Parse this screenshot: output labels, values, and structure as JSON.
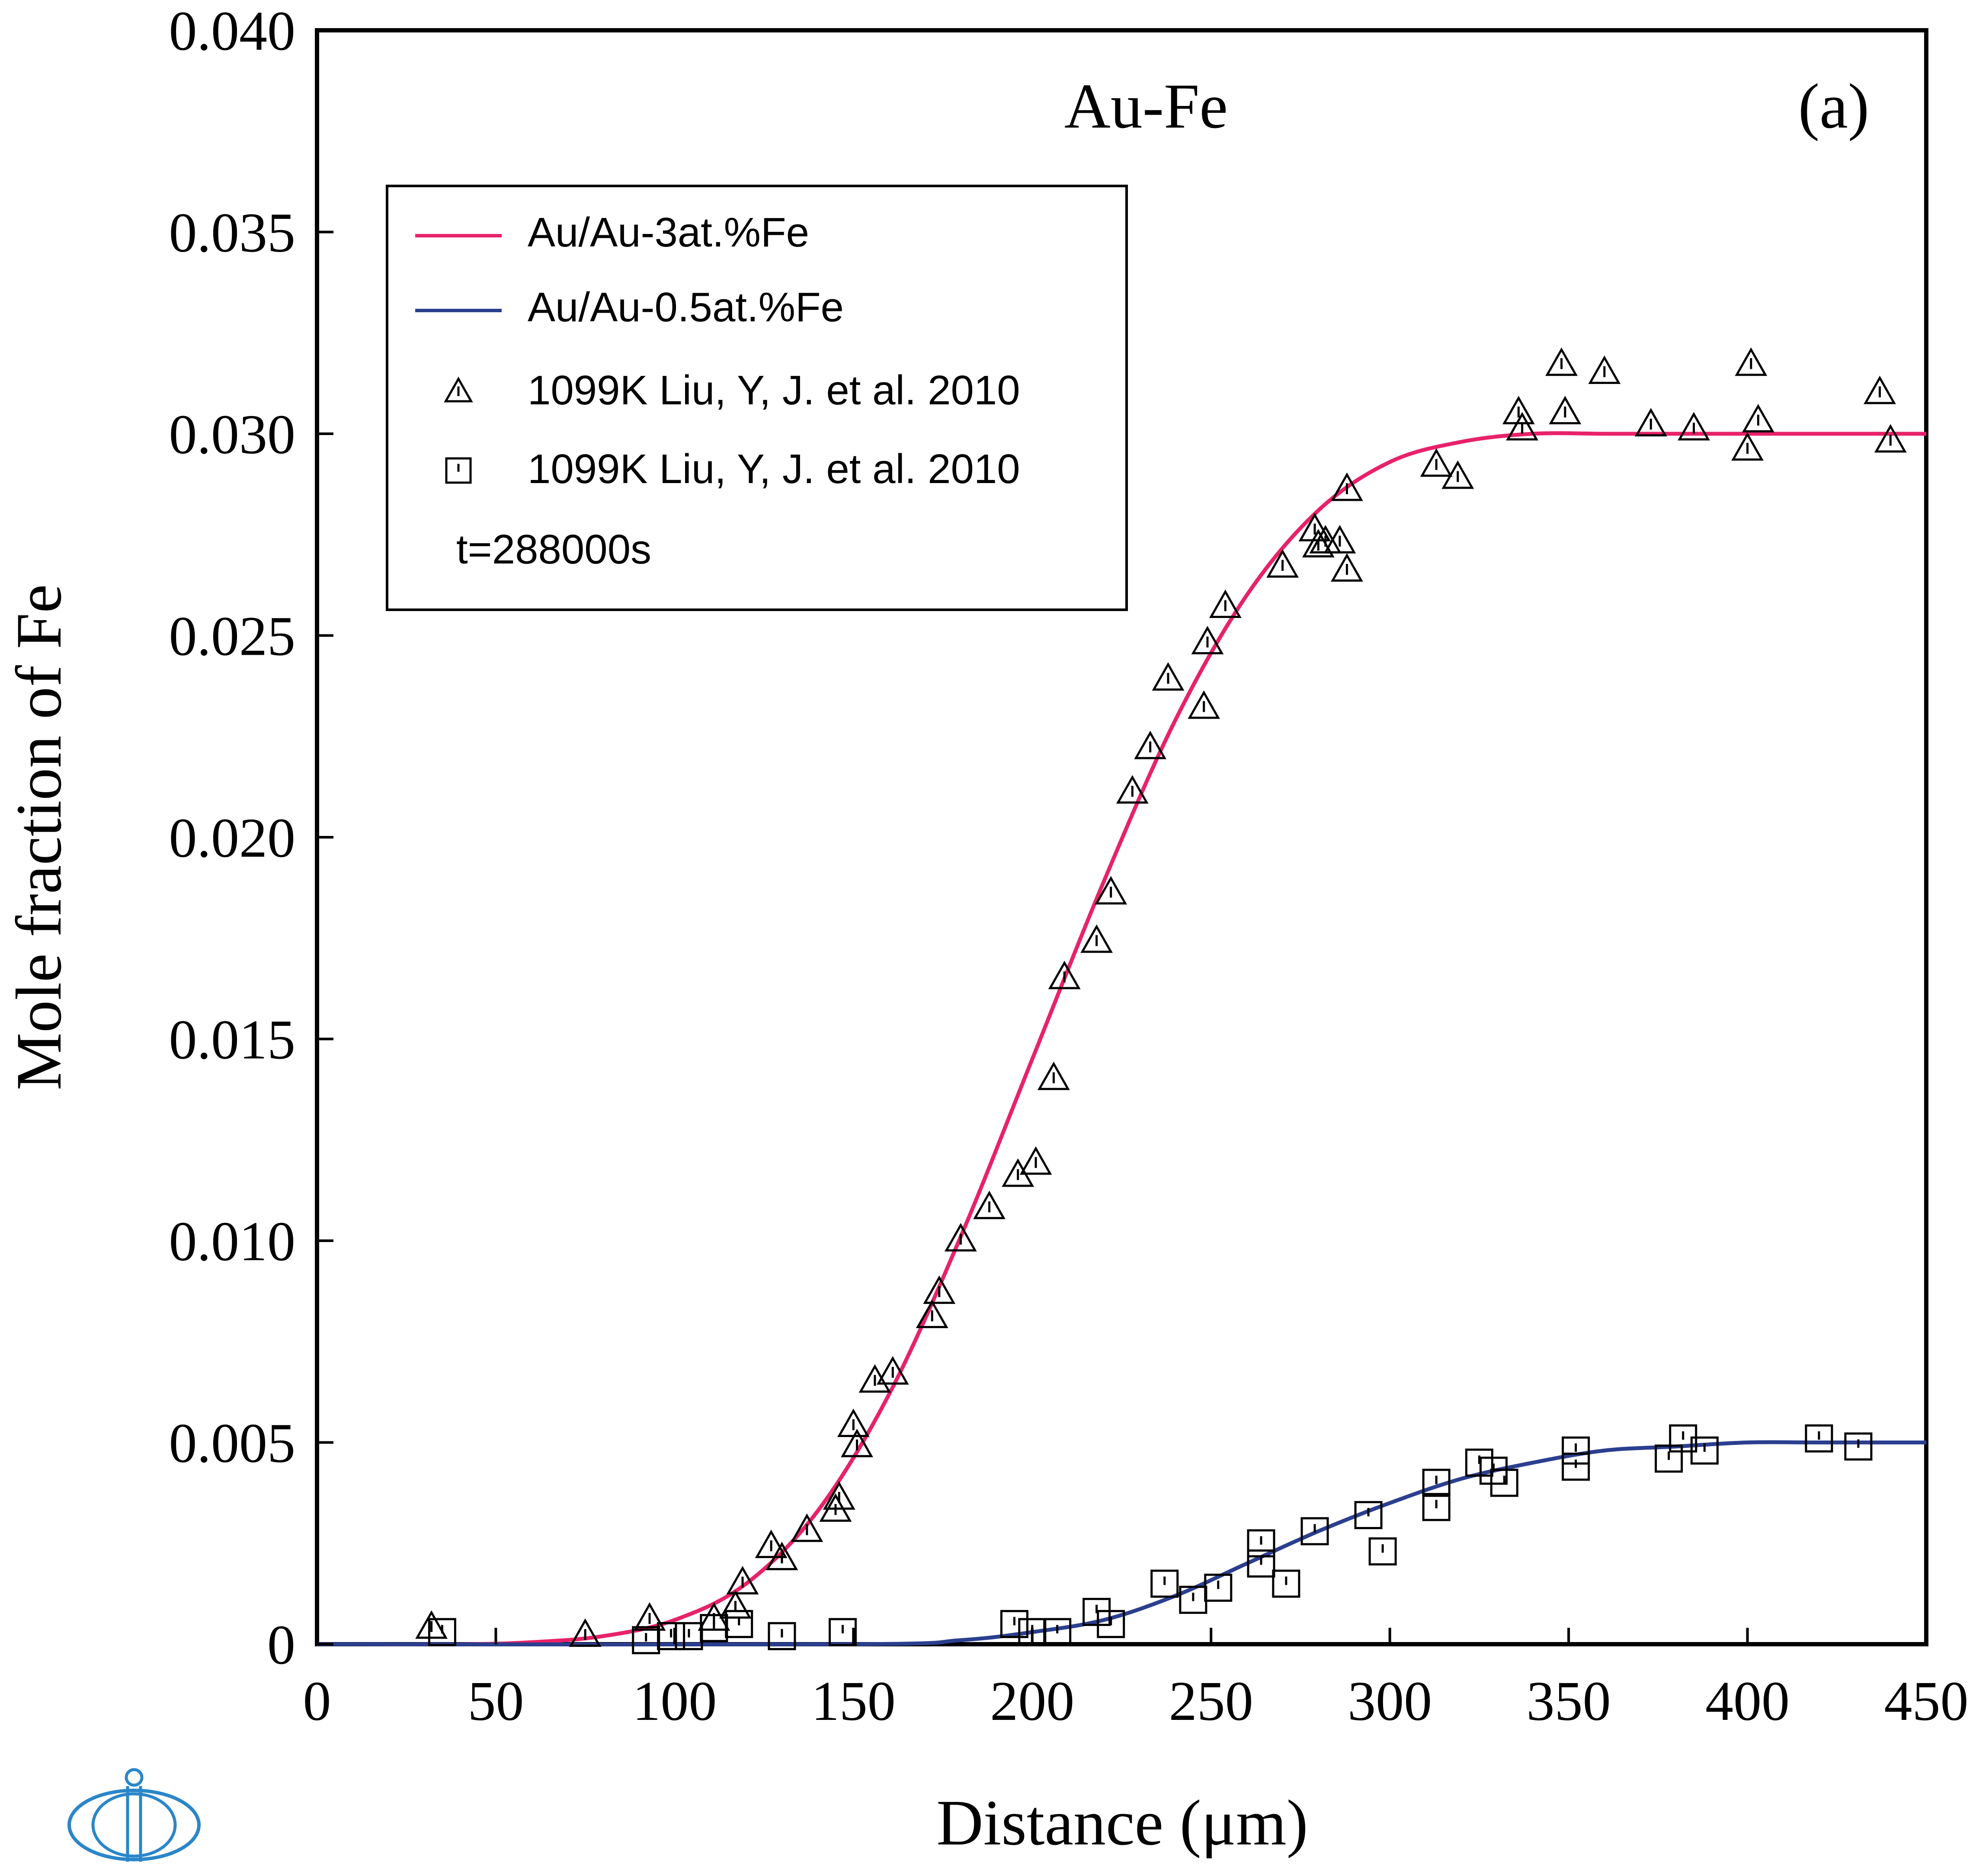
{
  "chart_data": {
    "type": "scatter",
    "title": "Au-Fe",
    "panel_label": "(a)",
    "xlabel": "Distance (μm)",
    "ylabel": "Mole fraction of Fe",
    "xlim": [
      0,
      450
    ],
    "ylim": [
      0,
      0.04
    ],
    "x_ticks": [
      "0",
      "50",
      "100",
      "150",
      "200",
      "250",
      "300",
      "350",
      "400",
      "450"
    ],
    "y_ticks": [
      "0",
      "0.005",
      "0.010",
      "0.015",
      "0.020",
      "0.025",
      "0.030",
      "0.035",
      "0.040"
    ],
    "grid": false,
    "legend_placement": "top-left",
    "annotation": "t=288000s",
    "series": [
      {
        "name": "Au/Au-3at.%Fe",
        "kind": "line",
        "color": "#e8226a",
        "x": [
          0,
          40,
          60,
          80,
          100,
          120,
          140,
          160,
          180,
          200,
          220,
          240,
          260,
          280,
          300,
          320,
          340,
          360,
          380,
          400,
          420,
          450
        ],
        "y": [
          0.0,
          0.0,
          5e-05,
          0.0002,
          0.0006,
          0.0015,
          0.0033,
          0.0062,
          0.0101,
          0.0145,
          0.0189,
          0.0229,
          0.026,
          0.0281,
          0.0293,
          0.0298,
          0.03,
          0.03,
          0.03,
          0.03,
          0.03,
          0.03
        ]
      },
      {
        "name": "Au/Au-0.5at.%Fe",
        "kind": "line",
        "color": "#2b3f8f",
        "x": [
          0,
          150,
          180,
          200,
          220,
          240,
          260,
          280,
          300,
          320,
          340,
          360,
          380,
          400,
          420,
          450
        ],
        "y": [
          0.0,
          0.0,
          0.0001,
          0.0003,
          0.0006,
          0.0012,
          0.002,
          0.0028,
          0.0035,
          0.0041,
          0.0045,
          0.0048,
          0.0049,
          0.005,
          0.005,
          0.005
        ]
      },
      {
        "name": "1099K Liu, Y, J. et al. 2010",
        "kind": "triangle",
        "x": [
          32,
          75,
          93,
          111,
          117,
          119,
          127,
          130,
          137,
          145,
          146,
          150,
          151,
          156,
          161,
          172,
          174,
          180,
          188,
          196,
          201,
          206,
          209,
          218,
          222,
          228,
          233,
          238,
          248,
          249,
          254,
          270,
          279,
          280,
          282,
          286,
          288,
          288,
          313,
          319,
          336,
          337,
          348,
          349,
          360,
          373,
          385,
          400,
          401,
          403,
          437,
          440
        ],
        "y": [
          0.0004,
          0.0002,
          0.0006,
          0.0006,
          0.0009,
          0.0015,
          0.0024,
          0.0021,
          0.0028,
          0.0033,
          0.0036,
          0.0054,
          0.0049,
          0.0065,
          0.0067,
          0.0081,
          0.0087,
          0.01,
          0.0108,
          0.0116,
          0.0119,
          0.014,
          0.0165,
          0.0174,
          0.0186,
          0.0211,
          0.0222,
          0.0239,
          0.0232,
          0.0248,
          0.0257,
          0.0267,
          0.0276,
          0.0272,
          0.0273,
          0.0273,
          0.0266,
          0.0286,
          0.0292,
          0.0289,
          0.0305,
          0.0301,
          0.0317,
          0.0305,
          0.0315,
          0.0302,
          0.0301,
          0.0296,
          0.0317,
          0.0303,
          0.031,
          0.0298
        ]
      },
      {
        "name": "1099K Liu, Y, J. et al. 2010",
        "kind": "square",
        "x": [
          35,
          92,
          99,
          104,
          111,
          118,
          130,
          147,
          195,
          200,
          207,
          218,
          222,
          237,
          245,
          252,
          264,
          264,
          271,
          279,
          294,
          298,
          313,
          313,
          325,
          329,
          332,
          352,
          352,
          378,
          382,
          388,
          420,
          431
        ],
        "y": [
          0.0003,
          0.0001,
          0.0002,
          0.0002,
          0.0004,
          0.0005,
          0.0002,
          0.0003,
          0.0005,
          0.0003,
          0.0003,
          0.0008,
          0.0005,
          0.0015,
          0.0011,
          0.0014,
          0.002,
          0.0025,
          0.0015,
          0.0028,
          0.0032,
          0.0023,
          0.004,
          0.0034,
          0.0045,
          0.0043,
          0.004,
          0.0044,
          0.0048,
          0.0046,
          0.0051,
          0.0048,
          0.0051,
          0.0049
        ]
      }
    ]
  },
  "logo": {
    "name": "publisher-logo"
  }
}
